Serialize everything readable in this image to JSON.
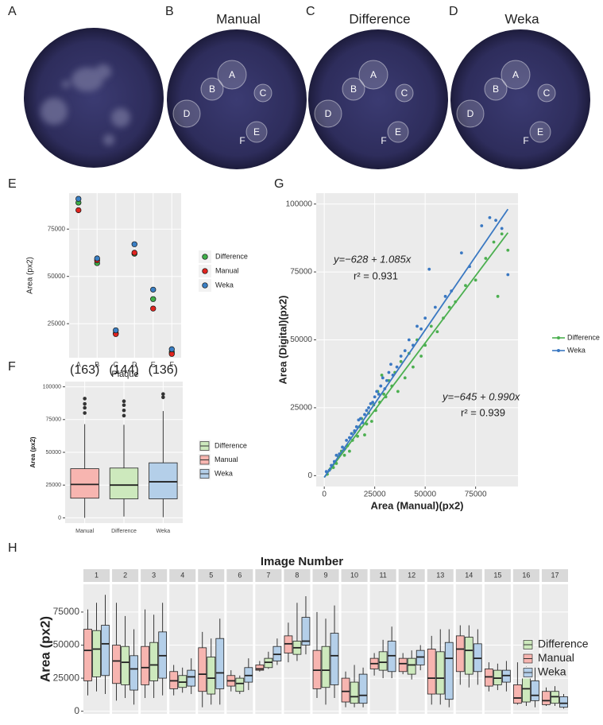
{
  "images": [
    {
      "label": "A"
    },
    {
      "label": "B",
      "title": "Manual",
      "plaques": [
        "A",
        "B",
        "C",
        "D",
        "E",
        "F"
      ]
    },
    {
      "label": "C",
      "title": "Difference",
      "plaques": [
        "A",
        "B",
        "C",
        "D",
        "E",
        "F"
      ]
    },
    {
      "label": "D",
      "title": "Weka",
      "plaques": [
        "A",
        "B",
        "C",
        "D",
        "E",
        "F"
      ]
    }
  ],
  "chart_data": [
    {
      "type": "dot",
      "label": "E",
      "xlabel": "Plaque",
      "ylabel": "Area (px2)",
      "categories": [
        "A",
        "B",
        "C",
        "D",
        "E",
        "F"
      ],
      "ylim": [
        7000,
        94000
      ],
      "yticks": [
        25000,
        50000,
        75000
      ],
      "grid": true,
      "legend": "right",
      "series": [
        {
          "name": "Difference",
          "color": "#3fae49",
          "values": [
            89000,
            57000,
            20000,
            62000,
            38000,
            10000
          ]
        },
        {
          "name": "Manual",
          "color": "#e0241f",
          "values": [
            85000,
            58500,
            19500,
            62500,
            33000,
            9000
          ]
        },
        {
          "name": "Weka",
          "color": "#3a7fc4",
          "values": [
            91000,
            59500,
            21500,
            67000,
            43000,
            11500
          ]
        }
      ]
    },
    {
      "type": "box",
      "label": "F",
      "ylabel": "Area (px2)",
      "categories": [
        "Manual",
        "Difference",
        "Weka"
      ],
      "count_labels": [
        "(163)",
        "(144)",
        "(136)"
      ],
      "ylim": [
        -4000,
        104000
      ],
      "yticks": [
        0,
        25000,
        50000,
        75000,
        100000
      ],
      "grid": true,
      "legend": "right",
      "series": [
        {
          "name": "Difference",
          "color": "#cde9bd",
          "stats": [
            1000,
            14500,
            25000,
            38000,
            71000
          ],
          "outliers": [
            78000,
            82000,
            86000,
            89000
          ]
        },
        {
          "name": "Manual",
          "color": "#f7b5b0",
          "stats": [
            0,
            15000,
            25500,
            37500,
            71500
          ],
          "outliers": [
            80000,
            84000,
            87000,
            91000
          ]
        },
        {
          "name": "Weka",
          "color": "#b4cfe9",
          "stats": [
            500,
            14500,
            27500,
            42000,
            81500
          ],
          "outliers": [
            92000,
            94500
          ]
        }
      ]
    },
    {
      "type": "scatter",
      "label": "G",
      "xlabel": "Area (Manual)(px2)",
      "ylabel": "Area (Digital)(px2)",
      "xlim": [
        -4000,
        96000
      ],
      "ylim": [
        -4000,
        104000
      ],
      "xticks": [
        0,
        25000,
        50000,
        75000
      ],
      "yticks": [
        0,
        25000,
        50000,
        75000,
        100000
      ],
      "grid": true,
      "legend": "right",
      "series": [
        {
          "name": "Difference",
          "color": "#4caf50",
          "x": [
            1500,
            3000,
            4500,
            6000,
            7000,
            8500,
            10000,
            11500,
            12500,
            14000,
            15000,
            16500,
            17500,
            18500,
            20000,
            21000,
            22000,
            23500,
            24500,
            25500,
            26500,
            27500,
            28500,
            29500,
            30500,
            32000,
            33500,
            35000,
            36500,
            38000,
            40000,
            42000,
            44000,
            46000,
            48000,
            50000,
            53000,
            56000,
            59000,
            62000,
            65000,
            70000,
            75000,
            80000,
            84000,
            86000,
            88000,
            91000
          ],
          "values": [
            500,
            2500,
            3000,
            4500,
            7000,
            9000,
            7500,
            11000,
            9000,
            13000,
            16000,
            14500,
            18000,
            21000,
            15000,
            19000,
            23000,
            20000,
            26000,
            24000,
            31000,
            27000,
            37000,
            30000,
            29000,
            35000,
            33000,
            38000,
            31000,
            42000,
            36000,
            45000,
            40000,
            50000,
            44000,
            48000,
            55000,
            53000,
            58000,
            62000,
            64000,
            70000,
            72000,
            80000,
            86000,
            66000,
            89000,
            83000
          ],
          "fit": {
            "intercept": -645,
            "slope": 0.99,
            "label": "y=−645 + 0.990x",
            "r2_label": "r² = 0.939"
          }
        },
        {
          "name": "Weka",
          "color": "#3a78c2",
          "x": [
            1000,
            2500,
            3500,
            5000,
            6000,
            7500,
            9000,
            10000,
            11000,
            12500,
            13500,
            15000,
            16000,
            17000,
            18000,
            19000,
            20000,
            21000,
            22000,
            23000,
            24000,
            25000,
            26000,
            27000,
            28000,
            29000,
            30000,
            31000,
            32000,
            33000,
            34000,
            36000,
            38000,
            40000,
            42000,
            44000,
            46000,
            48000,
            50000,
            52000,
            55000,
            60000,
            63000,
            68000,
            72000,
            78000,
            82000,
            85000,
            88000,
            91000
          ],
          "values": [
            1500,
            2000,
            3800,
            5200,
            7500,
            8000,
            10500,
            9800,
            13000,
            14000,
            15500,
            16500,
            18000,
            20500,
            21000,
            19500,
            22500,
            24000,
            25000,
            26500,
            27000,
            29000,
            31000,
            30000,
            33000,
            36000,
            32000,
            35000,
            38000,
            41000,
            37000,
            40000,
            44000,
            46000,
            50000,
            48000,
            55000,
            54000,
            58000,
            76000,
            62000,
            66000,
            68000,
            82000,
            77000,
            92000,
            95000,
            94000,
            91000,
            74000
          ],
          "fit": {
            "intercept": -628,
            "slope": 1.085,
            "label": "y=−628 + 1.085x",
            "r2_label": "r² = 0.931"
          }
        }
      ]
    },
    {
      "type": "facet_box",
      "label": "H",
      "title": "Image Number",
      "ylabel": "Area (px2)",
      "categories": [
        "1",
        "2",
        "3",
        "4",
        "5",
        "6",
        "7",
        "8",
        "9",
        "10",
        "11",
        "12",
        "13",
        "14",
        "15",
        "16",
        "17"
      ],
      "group_order": [
        "Manual",
        "Difference",
        "Weka"
      ],
      "ylim": [
        -2000,
        96000
      ],
      "yticks": [
        0,
        25000,
        50000,
        75000
      ],
      "grid": true,
      "legend": "right",
      "series": [
        {
          "name": "Difference",
          "color": "#cde9bd",
          "values": [
            [
              15000,
              26000,
              47000,
              61000,
              82000
            ],
            [
              10000,
              20000,
              37000,
              49000,
              72000
            ],
            [
              10000,
              23000,
              35000,
              52000,
              73000
            ],
            [
              14000,
              18000,
              22000,
              27000,
              33000
            ],
            [
              5000,
              13000,
              25000,
              41000,
              55000
            ],
            [
              13000,
              15000,
              21000,
              25000,
              27000
            ],
            [
              32000,
              33000,
              37000,
              40000,
              45000
            ],
            [
              38000,
              43000,
              48000,
              53000,
              82000
            ],
            [
              5000,
              18000,
              31000,
              49000,
              70000
            ],
            [
              3000,
              6000,
              11000,
              22000,
              35000
            ],
            [
              25000,
              31000,
              37000,
              45000,
              54000
            ],
            [
              24000,
              28000,
              35000,
              40000,
              46000
            ],
            [
              5000,
              13000,
              25000,
              45000,
              62000
            ],
            [
              18000,
              28000,
              46000,
              56000,
              65000
            ],
            [
              16000,
              20000,
              25000,
              31000,
              36000
            ],
            [
              4000,
              7000,
              17000,
              29000,
              34000
            ],
            [
              4000,
              6000,
              11000,
              15000,
              19000
            ]
          ]
        },
        {
          "name": "Manual",
          "color": "#f7b5b0",
          "values": [
            [
              12000,
              23000,
              46000,
              62000,
              77000
            ],
            [
              8000,
              21000,
              38000,
              50000,
              82000
            ],
            [
              10000,
              20000,
              33000,
              49000,
              77000
            ],
            [
              12000,
              17000,
              23000,
              30000,
              35000
            ],
            [
              3000,
              15000,
              28000,
              48000,
              60000
            ],
            [
              15000,
              19000,
              23000,
              27000,
              31000
            ],
            [
              30000,
              31000,
              32000,
              35000,
              38000
            ],
            [
              37000,
              44000,
              51000,
              57000,
              67000
            ],
            [
              10000,
              17000,
              31000,
              46000,
              75000
            ],
            [
              3000,
              7000,
              15000,
              25000,
              30000
            ],
            [
              27000,
              32000,
              36000,
              40000,
              44000
            ],
            [
              28000,
              30000,
              36000,
              40000,
              44000
            ],
            [
              5000,
              13000,
              25000,
              47000,
              57000
            ],
            [
              20000,
              30000,
              47000,
              57000,
              65000
            ],
            [
              15000,
              19000,
              26000,
              32000,
              37000
            ],
            [
              5000,
              6000,
              10000,
              20000,
              37000
            ],
            [
              4000,
              5000,
              8000,
              15000,
              18000
            ]
          ]
        },
        {
          "name": "Weka",
          "color": "#b4cfe9",
          "values": [
            [
              13000,
              27000,
              51000,
              65000,
              88000
            ],
            [
              5000,
              16000,
              32000,
              42000,
              62000
            ],
            [
              12000,
              25000,
              42000,
              60000,
              82000
            ],
            [
              13000,
              19000,
              26000,
              31000,
              40000
            ],
            [
              5000,
              17000,
              29000,
              55000,
              70000
            ],
            [
              16000,
              22000,
              27000,
              33000,
              40000
            ],
            [
              35000,
              38000,
              43000,
              49000,
              55000
            ],
            [
              43000,
              50000,
              53000,
              71000,
              87000
            ],
            [
              10000,
              20000,
              42000,
              59000,
              80000
            ],
            [
              3000,
              6000,
              12000,
              28000,
              33000
            ],
            [
              25000,
              30000,
              42000,
              53000,
              64000
            ],
            [
              31000,
              35000,
              41000,
              46000,
              50000
            ],
            [
              3000,
              9000,
              40000,
              52000,
              62000
            ],
            [
              20000,
              30000,
              40000,
              51000,
              62000
            ],
            [
              15000,
              22000,
              27000,
              31000,
              38000
            ],
            [
              3000,
              8000,
              12000,
              23000,
              33000
            ],
            [
              2000,
              3000,
              6000,
              11000,
              13000
            ]
          ]
        }
      ]
    }
  ]
}
